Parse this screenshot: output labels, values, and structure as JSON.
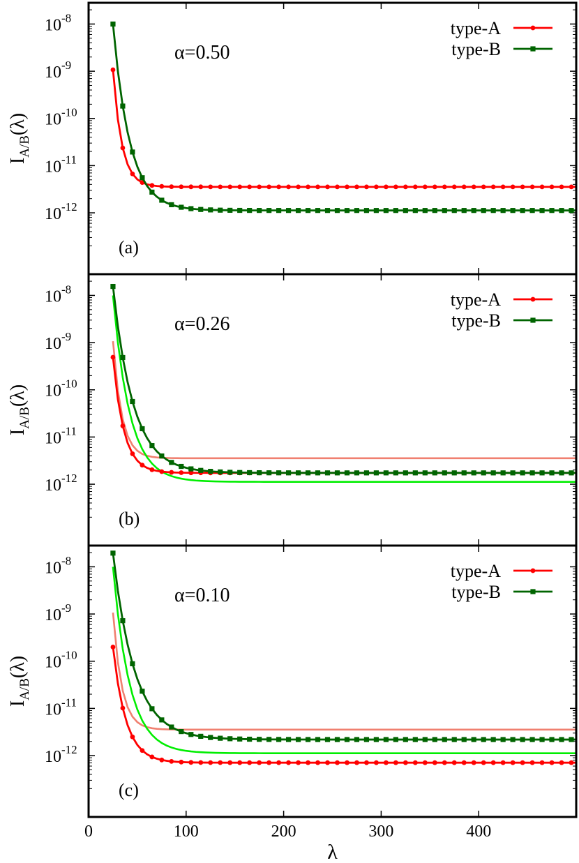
{
  "chart_data": [
    {
      "type": "line",
      "panel_label": "(a)",
      "annotation": "α=0.50",
      "ylabel_main": "I",
      "ylabel_sub": "A/B",
      "ylabel_arg": "(λ)",
      "xlabel": "",
      "xlim": [
        0,
        500
      ],
      "ylim_log10": [
        -13.3,
        -7.55
      ],
      "yscale": "log",
      "y_ticks": [
        {
          "exp": -8,
          "base": "10",
          "label": "-8"
        },
        {
          "exp": -9,
          "base": "10",
          "label": "-9"
        },
        {
          "exp": -10,
          "base": "10",
          "label": "-10"
        },
        {
          "exp": -11,
          "base": "10",
          "label": "-11"
        },
        {
          "exp": -12,
          "base": "10",
          "label": "-12"
        }
      ],
      "x_ticks": [],
      "legend": "top-right",
      "series": [
        {
          "name": "type-A",
          "color": "#ff0000",
          "marker": "circle",
          "show_legend": true,
          "params": {
            "x0": 25,
            "plateau": -11.45,
            "amp": 2.48,
            "decay": 0.11
          },
          "x_start": 25,
          "x_step": 5,
          "x_end": 500
        },
        {
          "name": "type-B",
          "color": "#006400",
          "marker": "square",
          "show_legend": true,
          "params": {
            "x0": 25,
            "plateau": -11.95,
            "amp": 3.95,
            "decay": 0.058
          },
          "x_start": 25,
          "x_step": 5,
          "x_end": 500
        }
      ]
    },
    {
      "type": "line",
      "panel_label": "(b)",
      "annotation": "α=0.26",
      "ylabel_main": "I",
      "ylabel_sub": "A/B",
      "ylabel_arg": "(λ)",
      "xlabel": "",
      "xlim": [
        0,
        500
      ],
      "ylim_log10": [
        -13.3,
        -7.55
      ],
      "yscale": "log",
      "y_ticks": [
        {
          "exp": -8,
          "base": "10",
          "label": "-8"
        },
        {
          "exp": -9,
          "base": "10",
          "label": "-9"
        },
        {
          "exp": -10,
          "base": "10",
          "label": "-10"
        },
        {
          "exp": -11,
          "base": "10",
          "label": "-11"
        },
        {
          "exp": -12,
          "base": "10",
          "label": "-12"
        }
      ],
      "x_ticks": [],
      "legend": "top-right",
      "series": [
        {
          "name": "",
          "color": "#f08070",
          "marker": "none",
          "show_legend": false,
          "params": {
            "x0": 25,
            "plateau": -11.45,
            "amp": 2.48,
            "decay": 0.11
          },
          "x_start": 25,
          "x_step": 5,
          "x_end": 500
        },
        {
          "name": "",
          "color": "#00ee00",
          "marker": "none",
          "show_legend": false,
          "params": {
            "x0": 25,
            "plateau": -11.95,
            "amp": 3.95,
            "decay": 0.058
          },
          "x_start": 25,
          "x_step": 5,
          "x_end": 500
        },
        {
          "name": "type-A",
          "color": "#ff0000",
          "marker": "circle",
          "show_legend": true,
          "params": {
            "x0": 25,
            "plateau": -11.76,
            "amp": 2.45,
            "decay": 0.09
          },
          "x_start": 25,
          "x_step": 5,
          "x_end": 500
        },
        {
          "name": "type-B",
          "color": "#006400",
          "marker": "square",
          "show_legend": true,
          "params": {
            "x0": 25,
            "plateau": -11.76,
            "amp": 3.95,
            "decay": 0.048
          },
          "x_start": 25,
          "x_step": 5,
          "x_end": 500
        }
      ]
    },
    {
      "type": "line",
      "panel_label": "(c)",
      "annotation": "α=0.10",
      "ylabel_main": "I",
      "ylabel_sub": "A/B",
      "ylabel_arg": "(λ)",
      "xlabel": "λ",
      "xlim": [
        0,
        500
      ],
      "ylim_log10": [
        -13.3,
        -7.55
      ],
      "yscale": "log",
      "y_ticks": [
        {
          "exp": -8,
          "base": "10",
          "label": "-8"
        },
        {
          "exp": -9,
          "base": "10",
          "label": "-9"
        },
        {
          "exp": -10,
          "base": "10",
          "label": "-10"
        },
        {
          "exp": -11,
          "base": "10",
          "label": "-11"
        },
        {
          "exp": -12,
          "base": "10",
          "label": "-12"
        }
      ],
      "x_ticks": [
        {
          "value": 0,
          "label": "0"
        },
        {
          "value": 100,
          "label": "100"
        },
        {
          "value": 200,
          "label": "200"
        },
        {
          "value": 300,
          "label": "300"
        },
        {
          "value": 400,
          "label": "400"
        }
      ],
      "legend": "top-right",
      "series": [
        {
          "name": "",
          "color": "#f08070",
          "marker": "none",
          "show_legend": false,
          "params": {
            "x0": 25,
            "plateau": -11.45,
            "amp": 2.48,
            "decay": 0.11
          },
          "x_start": 25,
          "x_step": 5,
          "x_end": 500
        },
        {
          "name": "",
          "color": "#00ee00",
          "marker": "none",
          "show_legend": false,
          "params": {
            "x0": 25,
            "plateau": -11.95,
            "amp": 3.95,
            "decay": 0.058
          },
          "x_start": 25,
          "x_step": 5,
          "x_end": 500
        },
        {
          "name": "type-A",
          "color": "#ff0000",
          "marker": "circle",
          "show_legend": true,
          "params": {
            "x0": 25,
            "plateau": -12.15,
            "amp": 2.45,
            "decay": 0.075
          },
          "x_start": 25,
          "x_step": 5,
          "x_end": 500
        },
        {
          "name": "type-B",
          "color": "#006400",
          "marker": "square",
          "show_legend": true,
          "params": {
            "x0": 25,
            "plateau": -11.66,
            "amp": 3.95,
            "decay": 0.045
          },
          "x_start": 25,
          "x_step": 5,
          "x_end": 500
        }
      ]
    }
  ]
}
